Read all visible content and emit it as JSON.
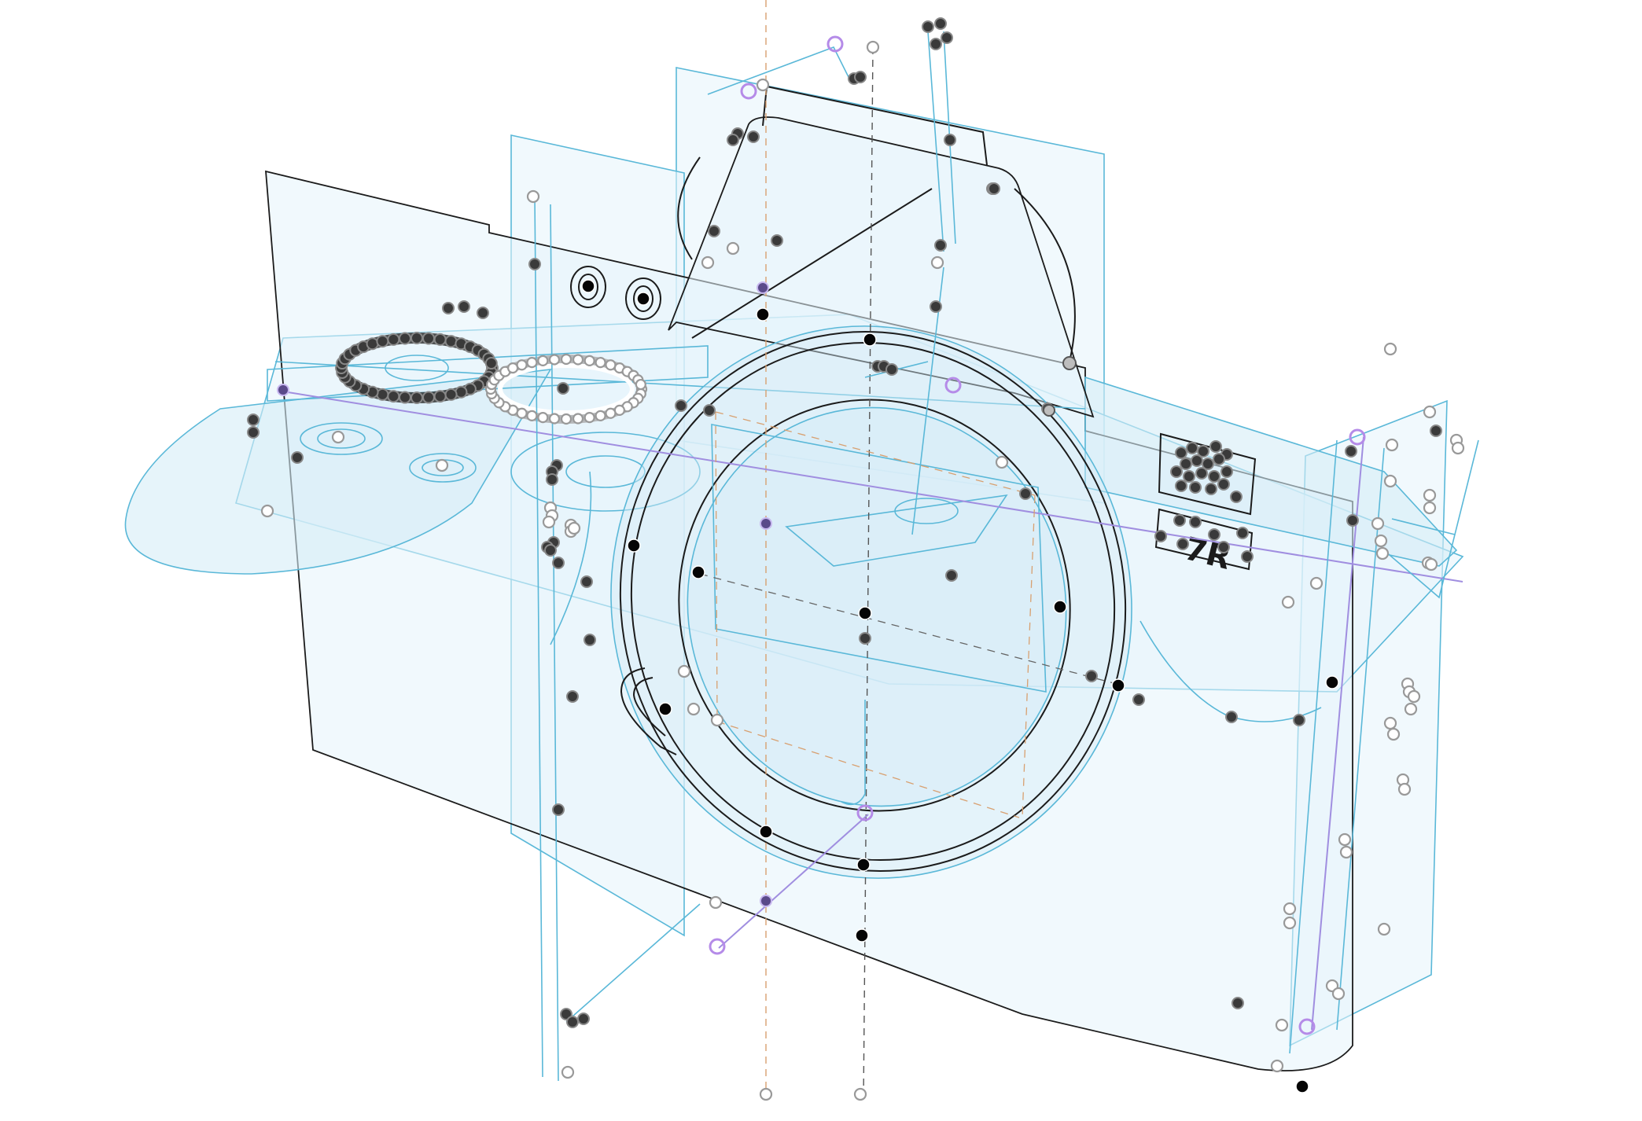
{
  "view": {
    "background": "#ffffff",
    "plane_fill": "#e6f4fb",
    "sketch_stroke": "#5ab8d8",
    "edge_stroke": "#1b1b1b",
    "axis_purple": "#a08ee0",
    "axis_orange": "#d8a070"
  },
  "model": {
    "subject": "camera-body-sketch",
    "badge_text": "7R",
    "icons": {
      "point_dark": "dark-vertex-icon",
      "point_black": "black-vertex-icon",
      "point_white": "hollow-vertex-icon",
      "point_purple": "purple-origin-icon"
    }
  }
}
